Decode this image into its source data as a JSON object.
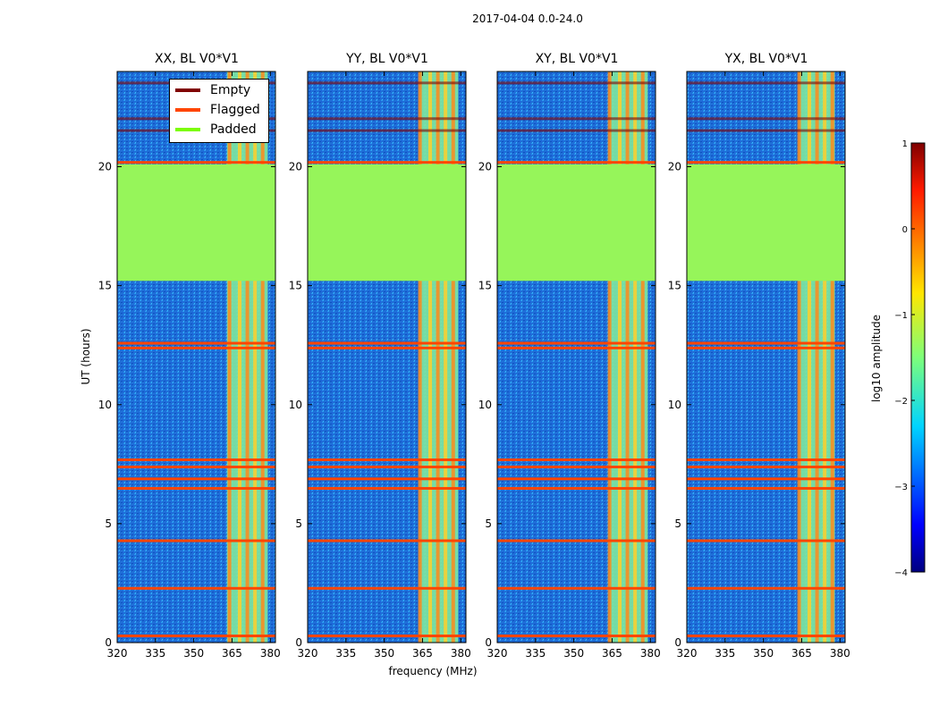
{
  "suptitle": "2017-04-04 0.0-24.0",
  "panels": [
    {
      "title": "XX, BL V0*V1",
      "key": "XX"
    },
    {
      "title": "YY, BL V0*V1",
      "key": "YY"
    },
    {
      "title": "XY, BL V0*V1",
      "key": "XY"
    },
    {
      "title": "YX, BL V0*V1",
      "key": "YX"
    }
  ],
  "xlabel": "frequency (MHz)",
  "ylabel": "UT (hours)",
  "colorbar_label": "log10 amplitude",
  "legend": [
    {
      "label": "Empty",
      "color": "#800000"
    },
    {
      "label": "Flagged",
      "color": "#ff4500"
    },
    {
      "label": "Padded",
      "color": "#7cfc00"
    }
  ],
  "chart_data": {
    "type": "heatmap",
    "title": "2017-04-04 0.0-24.0",
    "xlabel": "frequency (MHz)",
    "ylabel": "UT (hours)",
    "xlim": [
      320,
      382
    ],
    "ylim": [
      0,
      24
    ],
    "xticks": [
      "320",
      "335",
      "350",
      "365",
      "380"
    ],
    "yticks": [
      "0",
      "5",
      "10",
      "15",
      "20"
    ],
    "colorbar": {
      "label": "log10 amplitude",
      "range": [
        -4,
        1
      ],
      "ticks": [
        "1",
        "0",
        "−1",
        "−2",
        "−3",
        "−4"
      ]
    },
    "padded_band_hours": [
      15.2,
      20.1
    ],
    "flagged_rows_hours": [
      0.3,
      2.3,
      4.3,
      6.5,
      6.9,
      7.4,
      7.7,
      12.4,
      12.6,
      20.2
    ],
    "empty_rows_hours": [
      21.5,
      22.0,
      23.5
    ],
    "bright_band_mhz": {
      "XX": [
        363,
        379
      ],
      "YY": [
        364,
        379
      ],
      "XY": [
        364,
        379
      ],
      "YX": [
        364,
        378
      ]
    },
    "bright_channels_mhz": [
      364,
      368,
      371,
      374,
      377
    ]
  }
}
